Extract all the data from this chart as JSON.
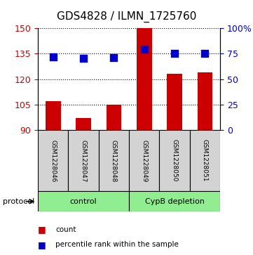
{
  "title": "GDS4828 / ILMN_1725760",
  "samples": [
    "GSM1228046",
    "GSM1228047",
    "GSM1228048",
    "GSM1228049",
    "GSM1228050",
    "GSM1228051"
  ],
  "counts": [
    107,
    97,
    105,
    150,
    123,
    124
  ],
  "percentile_ranks": [
    72,
    70,
    71,
    79,
    75,
    75
  ],
  "ylim_left": [
    90,
    150
  ],
  "ylim_right": [
    0,
    100
  ],
  "yticks_left": [
    90,
    105,
    120,
    135,
    150
  ],
  "yticks_right": [
    0,
    25,
    50,
    75,
    100
  ],
  "ytick_labels_right": [
    "0",
    "25",
    "50",
    "75",
    "100%"
  ],
  "bar_color": "#cc0000",
  "dot_color": "#0000cc",
  "control_label": "control",
  "treatment_label": "CypB depletion",
  "group_color": "#90ee90",
  "sample_box_color": "#d3d3d3",
  "protocol_label": "protocol",
  "legend_count": "count",
  "legend_percentile": "percentile rank within the sample",
  "title_fontsize": 11,
  "tick_fontsize": 9,
  "bar_width": 0.5,
  "dot_size": 50
}
